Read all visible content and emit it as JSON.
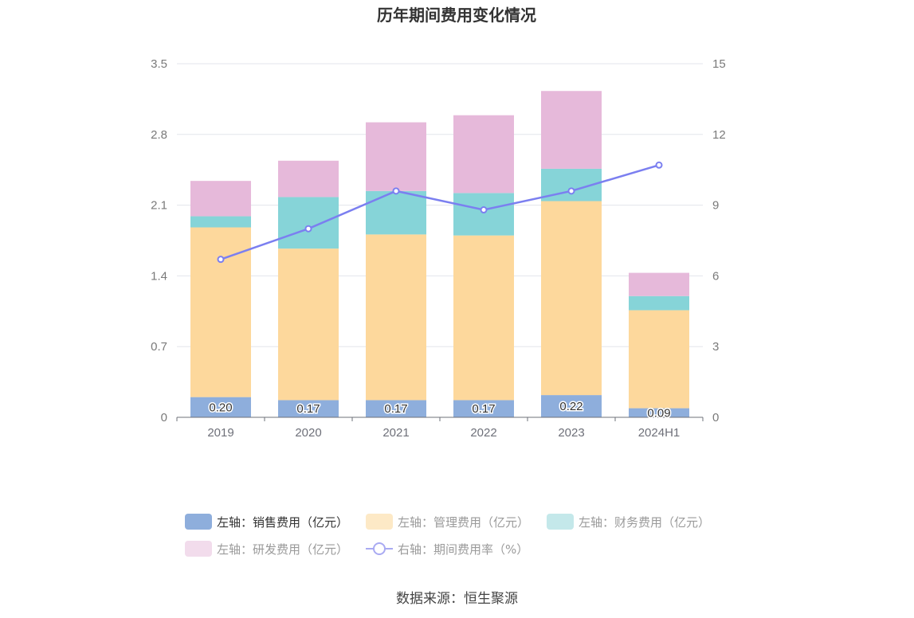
{
  "chart_data": {
    "type": "bar",
    "stacked": true,
    "title": "历年期间费用变化情况",
    "categories": [
      "2019",
      "2020",
      "2021",
      "2022",
      "2023",
      "2024H1"
    ],
    "left_axis": {
      "min": 0,
      "max": 3.5,
      "ticks": [
        "0",
        "0.7",
        "1.4",
        "2.1",
        "2.8",
        "3.5"
      ]
    },
    "right_axis": {
      "min": 0,
      "max": 15,
      "ticks": [
        "0",
        "3",
        "6",
        "9",
        "12",
        "15"
      ]
    },
    "series": [
      {
        "name": "左轴：销售费用（亿元）",
        "axis": "left",
        "type": "bar",
        "color": "#8eaedc",
        "values": [
          0.2,
          0.17,
          0.17,
          0.17,
          0.22,
          0.09
        ],
        "labels": [
          "0.20",
          "0.17",
          "0.17",
          "0.17",
          "0.22",
          "0.09"
        ]
      },
      {
        "name": "左轴：管理费用（亿元）",
        "axis": "left",
        "type": "bar",
        "color": "#fdd89c",
        "values": [
          1.68,
          1.5,
          1.64,
          1.63,
          1.92,
          0.97
        ]
      },
      {
        "name": "左轴：财务费用（亿元）",
        "axis": "left",
        "type": "bar",
        "color": "#86d4d8",
        "values": [
          0.11,
          0.51,
          0.43,
          0.42,
          0.32,
          0.14
        ]
      },
      {
        "name": "左轴：研发费用（亿元）",
        "axis": "left",
        "type": "bar",
        "color": "#e6b9da",
        "values": [
          0.35,
          0.36,
          0.68,
          0.77,
          0.77,
          0.23
        ]
      },
      {
        "name": "右轴：期间费用率（%）",
        "axis": "right",
        "type": "line",
        "color": "#7b7ff0",
        "values": [
          6.7,
          8.0,
          9.6,
          8.8,
          9.6,
          10.7
        ]
      }
    ],
    "grid": true,
    "legend_position": "bottom"
  },
  "source": "数据来源：恒生聚源"
}
